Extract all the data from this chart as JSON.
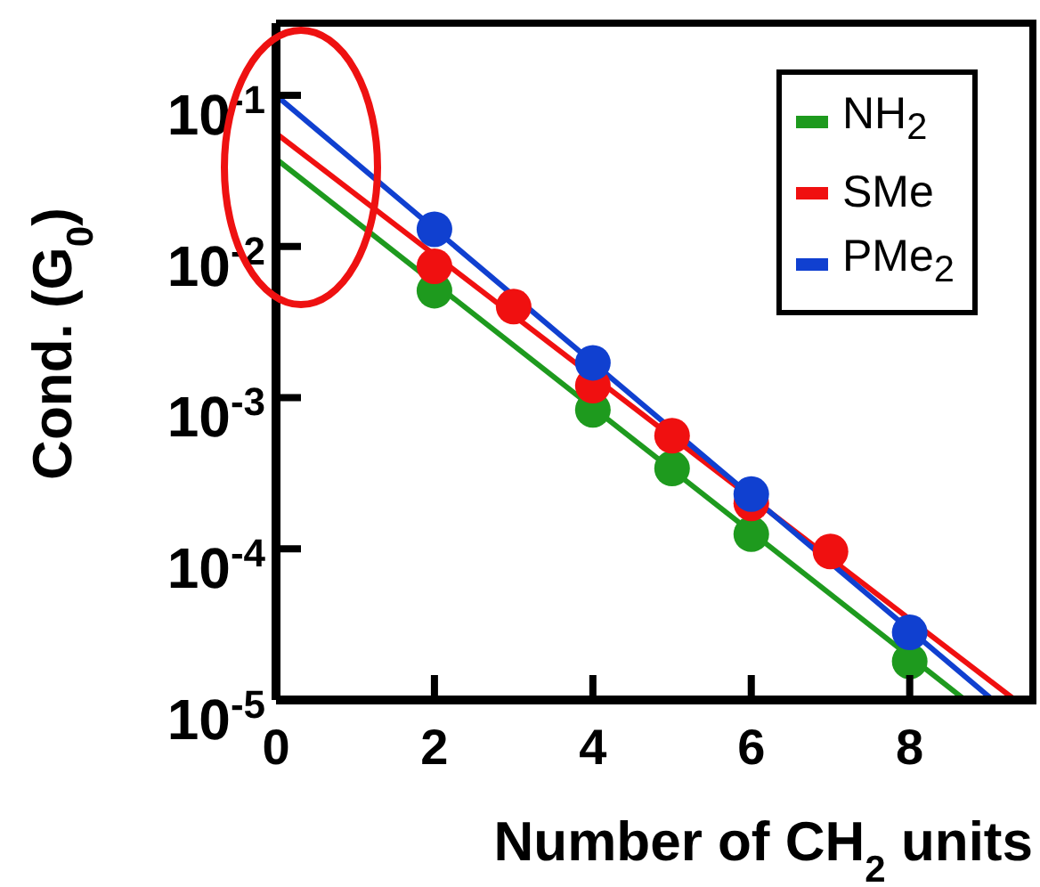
{
  "chart_data": {
    "type": "scatter",
    "xlabel": "Number of CH$_{2}$ units",
    "ylabel": "Cond. (G$_{0}$)",
    "log": "y",
    "legend": "top right",
    "xlim": [
      0,
      9.6
    ],
    "xticks": [
      0,
      2,
      4,
      6,
      8
    ],
    "ylim": [
      1e-05,
      0.3
    ],
    "yticks": [
      {
        "value": 0.1,
        "label": "10$^{-1}$"
      },
      {
        "value": 0.01,
        "label": "10$^{-2}$"
      },
      {
        "value": 0.001,
        "label": "10$^{-3}$"
      },
      {
        "value": 0.0001,
        "label": "10$^{-4}$"
      },
      {
        "value": 1e-05,
        "label": "10$^{-5}$"
      }
    ],
    "series": [
      {
        "type": "line",
        "marker": "none",
        "color": "#1e9a1e",
        "x": [
          0,
          8.7
        ],
        "values": [
          0.038,
          1e-05
        ]
      },
      {
        "type": "line",
        "marker": "none",
        "color": "#f01010",
        "x": [
          0,
          9.33
        ],
        "values": [
          0.056,
          1e-05
        ]
      },
      {
        "type": "line",
        "marker": "none",
        "color": "#1040d0",
        "x": [
          0,
          9.05
        ],
        "values": [
          0.1,
          1e-05
        ]
      },
      {
        "name": "NH$_{2}$",
        "marker": "circle",
        "color": "#1e9a1e",
        "x": [
          2,
          4,
          5,
          6,
          8
        ],
        "values": [
          0.0051,
          0.00083,
          0.00034,
          0.000125,
          1.8e-05
        ]
      },
      {
        "name": "SMe",
        "marker": "circle",
        "color": "#f01010",
        "x": [
          2,
          3,
          4,
          5,
          6,
          7
        ],
        "values": [
          0.0074,
          0.004,
          0.0012,
          0.00056,
          0.0002,
          9.6e-05
        ]
      },
      {
        "name": "PMe$_{2}$",
        "marker": "circle",
        "color": "#1040d0",
        "x": [
          2,
          4,
          6,
          8
        ],
        "values": [
          0.013,
          0.0017,
          0.00023,
          2.8e-05
        ]
      }
    ]
  }
}
